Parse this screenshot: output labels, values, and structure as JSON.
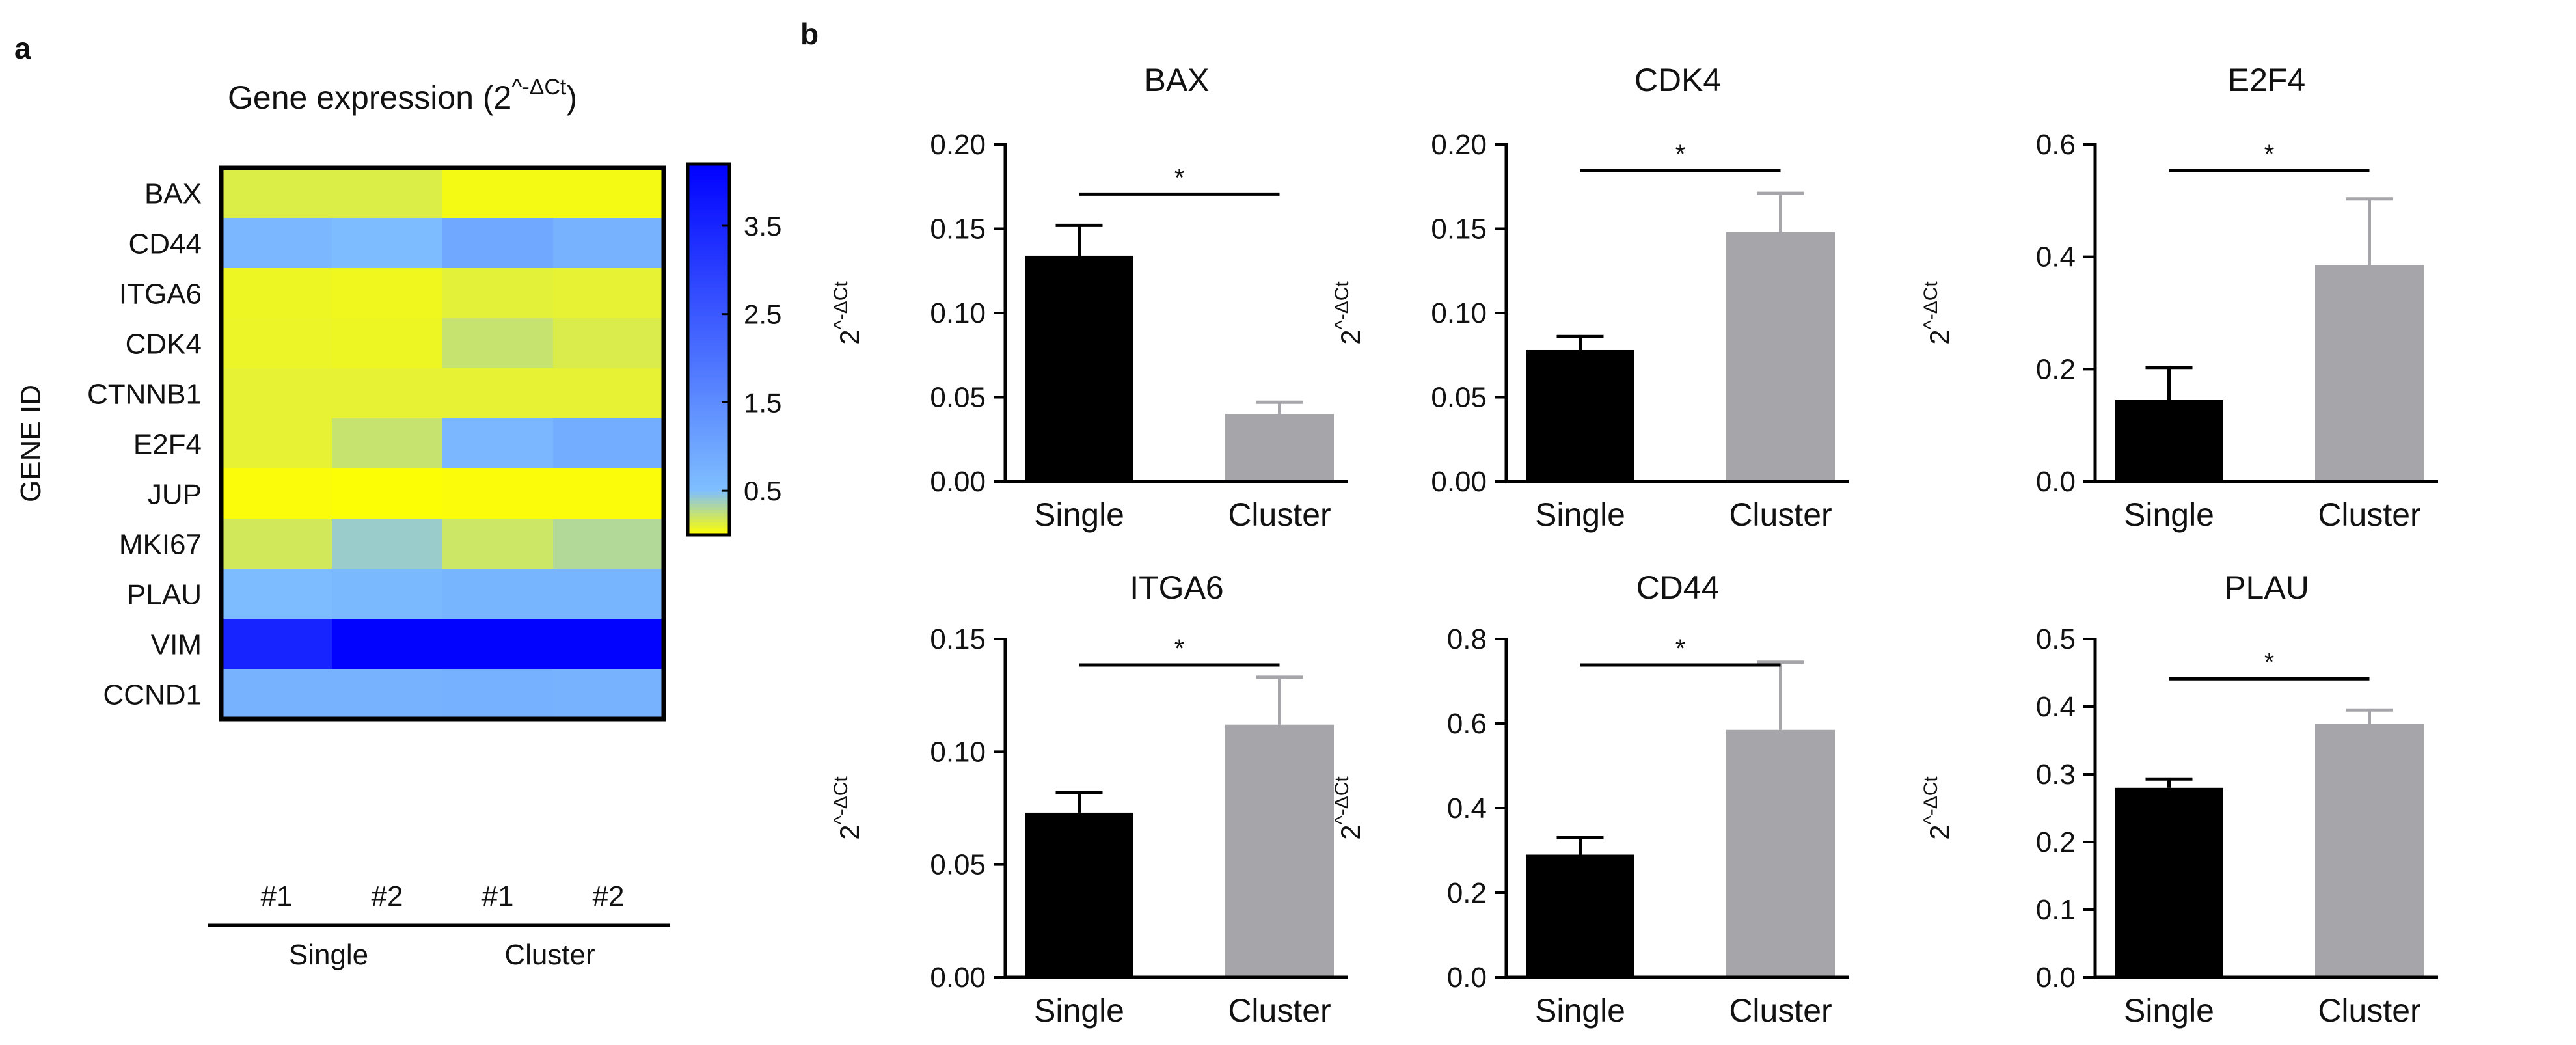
{
  "panels": {
    "a": "a",
    "b": "b"
  },
  "chart_data": [
    {
      "type": "heatmap",
      "panel": "a",
      "title_main": "Gene expression (2",
      "title_sup": "^-ΔCt",
      "title_close": ")",
      "ylabel": "GENE ID",
      "rows": [
        "BAX",
        "CD44",
        "ITGA6",
        "CDK4",
        "CTNNB1",
        "E2F4",
        "JUP",
        "MKI67",
        "PLAU",
        "VIM",
        "CCND1"
      ],
      "columns": [
        "#1",
        "#2",
        "#1",
        "#2"
      ],
      "groups": [
        {
          "label": "Single",
          "columns": [
            0,
            1
          ]
        },
        {
          "label": "Cluster",
          "columns": [
            2,
            3
          ]
        }
      ],
      "colorscale": {
        "min": 0,
        "max": 4.2,
        "low_color": "#ffff00",
        "mid_color": "#7fbfff",
        "high_color": "#0000ff"
      },
      "colorbar_ticks": [
        "3.5",
        "2.5",
        "1.5",
        "0.5"
      ],
      "colorbar_tick_values": [
        3.5,
        2.5,
        1.5,
        0.5
      ],
      "values": [
        [
          0.14,
          0.14,
          0.04,
          0.04
        ],
        [
          0.65,
          0.55,
          0.95,
          0.75
        ],
        [
          0.07,
          0.06,
          0.11,
          0.1
        ],
        [
          0.08,
          0.07,
          0.22,
          0.15
        ],
        [
          0.1,
          0.1,
          0.1,
          0.1
        ],
        [
          0.1,
          0.22,
          0.65,
          0.85
        ],
        [
          0.02,
          0.01,
          0.02,
          0.02
        ],
        [
          0.18,
          0.4,
          0.2,
          0.3
        ],
        [
          0.55,
          0.62,
          0.7,
          0.7
        ],
        [
          3.5,
          4.15,
          4.15,
          4.15
        ],
        [
          0.75,
          0.75,
          0.78,
          0.75
        ]
      ]
    },
    {
      "type": "bar",
      "panel": "b",
      "title": "BAX",
      "ylabel_base": "2",
      "ylabel_sup": "^-ΔCt",
      "categories": [
        "Single",
        "Cluster"
      ],
      "values": [
        0.134,
        0.04
      ],
      "errors": [
        0.018,
        0.007
      ],
      "colors": [
        "#000000",
        "#a5a5aa"
      ],
      "ylim": [
        0,
        0.2
      ],
      "yticks": [
        0,
        0.05,
        0.1,
        0.15,
        0.2
      ],
      "ytick_labels": [
        "0.00",
        "0.05",
        "0.10",
        "0.15",
        "0.20"
      ],
      "significance": "*"
    },
    {
      "type": "bar",
      "panel": "b",
      "title": "CDK4",
      "ylabel_base": "2",
      "ylabel_sup": "^-ΔCt",
      "categories": [
        "Single",
        "Cluster"
      ],
      "values": [
        0.078,
        0.148
      ],
      "errors": [
        0.008,
        0.023
      ],
      "colors": [
        "#000000",
        "#a5a5aa"
      ],
      "ylim": [
        0,
        0.2
      ],
      "yticks": [
        0,
        0.05,
        0.1,
        0.15,
        0.2
      ],
      "ytick_labels": [
        "0.00",
        "0.05",
        "0.10",
        "0.15",
        "0.20"
      ],
      "significance": "*"
    },
    {
      "type": "bar",
      "panel": "b",
      "title": "E2F4",
      "ylabel_base": "2",
      "ylabel_sup": "^-ΔCt",
      "categories": [
        "Single",
        "Cluster"
      ],
      "values": [
        0.145,
        0.385
      ],
      "errors": [
        0.058,
        0.118
      ],
      "colors": [
        "#000000",
        "#a5a5aa"
      ],
      "ylim": [
        0,
        0.6
      ],
      "yticks": [
        0,
        0.2,
        0.4,
        0.6
      ],
      "ytick_labels": [
        "0.0",
        "0.2",
        "0.4",
        "0.6"
      ],
      "significance": "*"
    },
    {
      "type": "bar",
      "panel": "b",
      "title": "ITGA6",
      "ylabel_base": "2",
      "ylabel_sup": "^-ΔCt",
      "categories": [
        "Single",
        "Cluster"
      ],
      "values": [
        0.073,
        0.112
      ],
      "errors": [
        0.009,
        0.021
      ],
      "colors": [
        "#000000",
        "#a5a5aa"
      ],
      "ylim": [
        0,
        0.15
      ],
      "yticks": [
        0,
        0.05,
        0.1,
        0.15
      ],
      "ytick_labels": [
        "0.00",
        "0.05",
        "0.10",
        "0.15"
      ],
      "significance": "*"
    },
    {
      "type": "bar",
      "panel": "b",
      "title": "CD44",
      "ylabel_base": "2",
      "ylabel_sup": "^-ΔCt",
      "categories": [
        "Single",
        "Cluster"
      ],
      "values": [
        0.29,
        0.585
      ],
      "errors": [
        0.04,
        0.16
      ],
      "colors": [
        "#000000",
        "#a5a5aa"
      ],
      "ylim": [
        0,
        0.8
      ],
      "yticks": [
        0,
        0.2,
        0.4,
        0.6,
        0.8
      ],
      "ytick_labels": [
        "0.0",
        "0.2",
        "0.4",
        "0.6",
        "0.8"
      ],
      "significance": "*"
    },
    {
      "type": "bar",
      "panel": "b",
      "title": "PLAU",
      "ylabel_base": "2",
      "ylabel_sup": "^-ΔCt",
      "categories": [
        "Single",
        "Cluster"
      ],
      "values": [
        0.28,
        0.375
      ],
      "errors": [
        0.013,
        0.02
      ],
      "colors": [
        "#000000",
        "#a5a5aa"
      ],
      "ylim": [
        0,
        0.5
      ],
      "yticks": [
        0,
        0.1,
        0.2,
        0.3,
        0.4,
        0.5
      ],
      "ytick_labels": [
        "0.0",
        "0.1",
        "0.2",
        "0.3",
        "0.4",
        "0.5"
      ],
      "significance": "*"
    }
  ]
}
